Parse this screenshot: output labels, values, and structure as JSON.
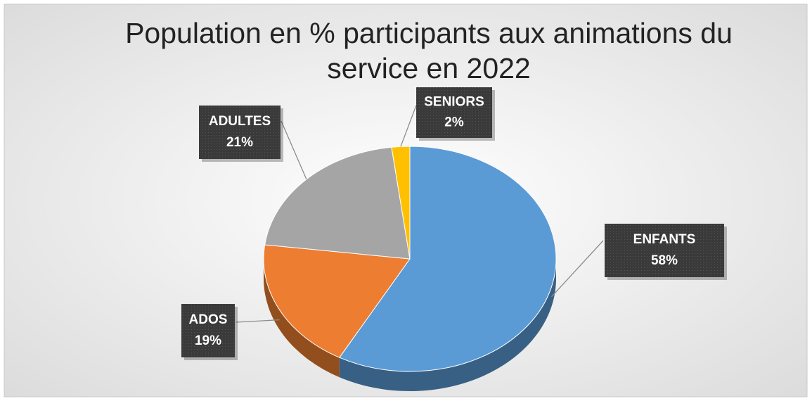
{
  "chart_data": {
    "type": "pie",
    "title": "Population en % participants aux animations du service en 2022",
    "categories": [
      "ENFANTS",
      "ADOS",
      "ADULTES",
      "SENIORS"
    ],
    "values": [
      58,
      19,
      21,
      2
    ],
    "value_labels": [
      "58%",
      "19%",
      "21%",
      "2%"
    ],
    "colors": [
      "#5b9bd5",
      "#ed7d31",
      "#a5a5a5",
      "#ffc000"
    ]
  }
}
